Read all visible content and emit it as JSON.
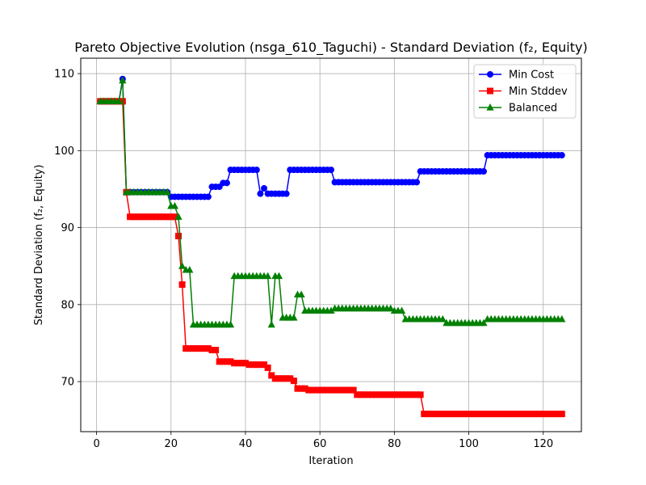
{
  "chart_data": {
    "type": "line",
    "title": "Pareto Objective Evolution (nsga_610_Taguchi) - Standard Deviation (f₂, Equity)",
    "xlabel": "Iteration",
    "ylabel": "Standard Deviation (f₂, Equity)",
    "xlim": [
      -4.25,
      130.25
    ],
    "ylim": [
      63.5,
      112
    ],
    "xticks": [
      0,
      20,
      40,
      60,
      80,
      100,
      120
    ],
    "yticks": [
      70,
      80,
      90,
      100,
      110
    ],
    "grid": true,
    "legend_position": "top-right",
    "series": [
      {
        "name": "Min Cost",
        "color": "#0000ff",
        "marker": "circle",
        "segments": [
          {
            "from": 1,
            "to": 6,
            "y": 106.4
          },
          {
            "from": 7,
            "to": 7,
            "y": 109.3
          },
          {
            "from": 8,
            "to": 19,
            "y": 94.6
          },
          {
            "from": 20,
            "to": 30,
            "y": 94.0
          },
          {
            "from": 31,
            "to": 33,
            "y": 95.3
          },
          {
            "from": 34,
            "to": 35,
            "y": 95.8
          },
          {
            "from": 36,
            "to": 43,
            "y": 97.5
          },
          {
            "from": 44,
            "to": 44,
            "y": 94.4
          },
          {
            "from": 45,
            "to": 45,
            "y": 95.1
          },
          {
            "from": 46,
            "to": 51,
            "y": 94.4
          },
          {
            "from": 52,
            "to": 63,
            "y": 97.5
          },
          {
            "from": 64,
            "to": 86,
            "y": 95.9
          },
          {
            "from": 87,
            "to": 104,
            "y": 97.3
          },
          {
            "from": 105,
            "to": 125,
            "y": 99.4
          }
        ]
      },
      {
        "name": "Min Stddev",
        "color": "#ff0000",
        "marker": "square",
        "segments": [
          {
            "from": 1,
            "to": 7,
            "y": 106.4
          },
          {
            "from": 8,
            "to": 8,
            "y": 94.6
          },
          {
            "from": 9,
            "to": 21,
            "y": 91.4
          },
          {
            "from": 22,
            "to": 22,
            "y": 88.9
          },
          {
            "from": 23,
            "to": 23,
            "y": 82.6
          },
          {
            "from": 24,
            "to": 30,
            "y": 74.3
          },
          {
            "from": 31,
            "to": 32,
            "y": 74.1
          },
          {
            "from": 33,
            "to": 36,
            "y": 72.6
          },
          {
            "from": 37,
            "to": 40,
            "y": 72.4
          },
          {
            "from": 41,
            "to": 45,
            "y": 72.2
          },
          {
            "from": 46,
            "to": 46,
            "y": 71.8
          },
          {
            "from": 47,
            "to": 47,
            "y": 70.8
          },
          {
            "from": 48,
            "to": 52,
            "y": 70.4
          },
          {
            "from": 53,
            "to": 53,
            "y": 70.1
          },
          {
            "from": 54,
            "to": 56,
            "y": 69.1
          },
          {
            "from": 57,
            "to": 69,
            "y": 68.9
          },
          {
            "from": 70,
            "to": 87,
            "y": 68.3
          },
          {
            "from": 88,
            "to": 125,
            "y": 65.8
          }
        ]
      },
      {
        "name": "Balanced",
        "color": "#008000",
        "marker": "triangle",
        "segments": [
          {
            "from": 1,
            "to": 6,
            "y": 106.4
          },
          {
            "from": 7,
            "to": 7,
            "y": 109.1
          },
          {
            "from": 8,
            "to": 19,
            "y": 94.6
          },
          {
            "from": 20,
            "to": 21,
            "y": 92.8
          },
          {
            "from": 22,
            "to": 22,
            "y": 91.4
          },
          {
            "from": 23,
            "to": 23,
            "y": 85.0
          },
          {
            "from": 24,
            "to": 25,
            "y": 84.5
          },
          {
            "from": 26,
            "to": 36,
            "y": 77.4
          },
          {
            "from": 37,
            "to": 46,
            "y": 83.7
          },
          {
            "from": 47,
            "to": 47,
            "y": 77.4
          },
          {
            "from": 48,
            "to": 49,
            "y": 83.7
          },
          {
            "from": 50,
            "to": 53,
            "y": 78.3
          },
          {
            "from": 54,
            "to": 55,
            "y": 81.3
          },
          {
            "from": 56,
            "to": 63,
            "y": 79.2
          },
          {
            "from": 64,
            "to": 79,
            "y": 79.5
          },
          {
            "from": 80,
            "to": 82,
            "y": 79.2
          },
          {
            "from": 83,
            "to": 93,
            "y": 78.1
          },
          {
            "from": 94,
            "to": 104,
            "y": 77.6
          },
          {
            "from": 105,
            "to": 125,
            "y": 78.1
          }
        ]
      }
    ]
  }
}
